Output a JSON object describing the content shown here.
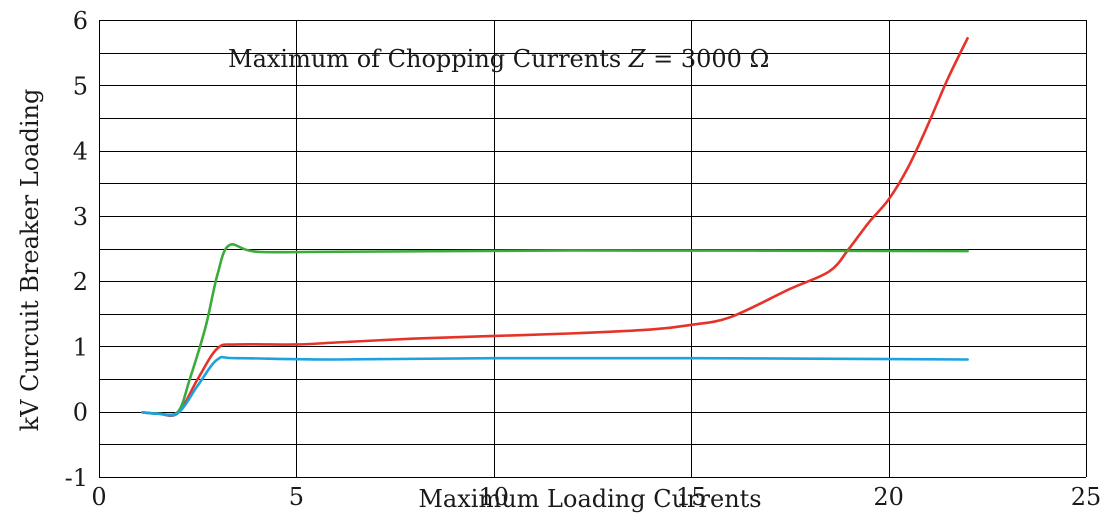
{
  "chart_data": {
    "type": "line",
    "title": "Maximum of Chopping Currents Z = 3000 Ω",
    "title_parts": {
      "prefix": "Maximum of Chopping Currents ",
      "variable": "Z",
      "suffix": " = 3000 Ω"
    },
    "xlabel": "Maximum Loading Currents",
    "ylabel": "kV Curcuit Breaker Loading",
    "xlim": [
      0,
      25
    ],
    "ylim": [
      -1,
      6
    ],
    "x_ticks": [
      "0",
      "5",
      "10",
      "15",
      "20",
      "25"
    ],
    "y_ticks": [
      "-1",
      "0",
      "1",
      "2",
      "3",
      "4",
      "5",
      "6"
    ],
    "grid": true,
    "legend": "none",
    "series": [
      {
        "color": "#e5332a",
        "points": [
          [
            1.1,
            -0.01
          ],
          [
            1.5,
            -0.03
          ],
          [
            2.0,
            -0.02
          ],
          [
            2.5,
            0.5
          ],
          [
            3.0,
            0.97
          ],
          [
            3.5,
            1.03
          ],
          [
            5.0,
            1.03
          ],
          [
            6.0,
            1.06
          ],
          [
            8.0,
            1.12
          ],
          [
            10.0,
            1.16
          ],
          [
            12.0,
            1.2
          ],
          [
            14.0,
            1.26
          ],
          [
            15.0,
            1.33
          ],
          [
            16.0,
            1.45
          ],
          [
            17.5,
            1.88
          ],
          [
            18.5,
            2.15
          ],
          [
            19.0,
            2.5
          ],
          [
            19.5,
            2.9
          ],
          [
            20.0,
            3.25
          ],
          [
            20.5,
            3.75
          ],
          [
            21.0,
            4.4
          ],
          [
            21.5,
            5.1
          ],
          [
            22.0,
            5.72
          ]
        ]
      },
      {
        "color": "#3bab3a",
        "points": [
          [
            1.1,
            -0.01
          ],
          [
            1.5,
            -0.03
          ],
          [
            2.0,
            0.0
          ],
          [
            2.3,
            0.5
          ],
          [
            2.7,
            1.3
          ],
          [
            3.0,
            2.1
          ],
          [
            3.3,
            2.55
          ],
          [
            4.0,
            2.45
          ],
          [
            6.0,
            2.45
          ],
          [
            12.0,
            2.47
          ],
          [
            22.0,
            2.46
          ]
        ]
      },
      {
        "color": "#1aa3dc",
        "points": [
          [
            1.1,
            -0.01
          ],
          [
            1.5,
            -0.03
          ],
          [
            2.0,
            -0.02
          ],
          [
            2.5,
            0.4
          ],
          [
            3.0,
            0.8
          ],
          [
            3.5,
            0.82
          ],
          [
            6.0,
            0.8
          ],
          [
            10.0,
            0.82
          ],
          [
            15.0,
            0.82
          ],
          [
            22.0,
            0.8
          ]
        ]
      }
    ]
  }
}
